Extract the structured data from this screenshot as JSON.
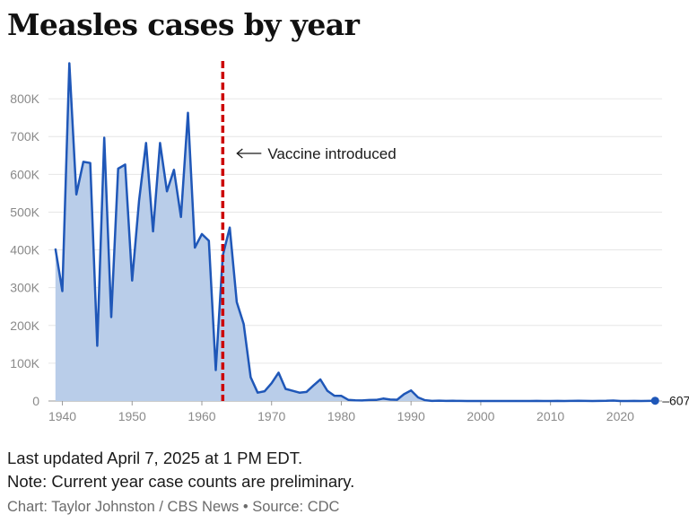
{
  "title": "Measles cases by year",
  "footer": {
    "updated": "Last updated April 7, 2025 at 1 PM EDT.",
    "note": "Note: Current year case counts are preliminary.",
    "credit": "Chart: Taylor Johnston / CBS News • Source: CDC"
  },
  "colors": {
    "line": "#1f57b8",
    "area": "#b9cde9",
    "vaccine_line": "#cc0000",
    "grid": "#e6e6e6"
  },
  "chart_data": {
    "type": "area",
    "title": "Measles cases by year",
    "xlabel": "",
    "ylabel": "",
    "xlim": [
      1938,
      2026
    ],
    "ylim": [
      0,
      900000
    ],
    "grid": true,
    "x_ticks": [
      1940,
      1950,
      1960,
      1970,
      1980,
      1990,
      2000,
      2010,
      2020
    ],
    "x_tick_labels": [
      "1940",
      "1950",
      "1960",
      "1970",
      "1980",
      "1990",
      "2000",
      "2010",
      "2020"
    ],
    "y_ticks": [
      0,
      100000,
      200000,
      300000,
      400000,
      500000,
      600000,
      700000,
      800000
    ],
    "y_tick_labels": [
      "0",
      "100K",
      "200K",
      "300K",
      "400K",
      "500K",
      "600K",
      "700K",
      "800K"
    ],
    "x": [
      1939,
      1940,
      1941,
      1942,
      1943,
      1944,
      1945,
      1946,
      1947,
      1948,
      1949,
      1950,
      1951,
      1952,
      1953,
      1954,
      1955,
      1956,
      1957,
      1958,
      1959,
      1960,
      1961,
      1962,
      1963,
      1964,
      1965,
      1966,
      1967,
      1968,
      1969,
      1970,
      1971,
      1972,
      1973,
      1974,
      1975,
      1976,
      1977,
      1978,
      1979,
      1980,
      1981,
      1982,
      1983,
      1984,
      1985,
      1986,
      1987,
      1988,
      1989,
      1990,
      1991,
      1992,
      1993,
      1994,
      1995,
      1996,
      1997,
      1998,
      1999,
      2000,
      2001,
      2002,
      2003,
      2004,
      2005,
      2006,
      2007,
      2008,
      2009,
      2010,
      2011,
      2012,
      2013,
      2014,
      2015,
      2016,
      2017,
      2018,
      2019,
      2020,
      2021,
      2022,
      2023,
      2024,
      2025
    ],
    "series": [
      {
        "values": [
          403000,
          291000,
          894000,
          547000,
          633000,
          630000,
          146000,
          697000,
          222000,
          615000,
          626000,
          319000,
          530000,
          683000,
          449000,
          683000,
          555000,
          612000,
          487000,
          763000,
          406000,
          442000,
          424000,
          82000,
          385000,
          459000,
          262000,
          204000,
          63000,
          22000,
          26000,
          47000,
          75000,
          32000,
          27000,
          22000,
          24000,
          41000,
          57000,
          27000,
          14000,
          13500,
          3000,
          1700,
          1500,
          2600,
          2800,
          6300,
          3700,
          3400,
          18000,
          28000,
          9600,
          2200,
          312,
          963,
          309,
          508,
          138,
          100,
          100,
          86,
          116,
          44,
          56,
          37,
          66,
          55,
          43,
          140,
          71,
          63,
          220,
          55,
          187,
          667,
          188,
          86,
          120,
          375,
          1274,
          13,
          49,
          121,
          59,
          285,
          607
        ]
      }
    ],
    "annotations": [
      {
        "x": 1963,
        "text": "Vaccine introduced"
      }
    ],
    "end_label": "607"
  }
}
